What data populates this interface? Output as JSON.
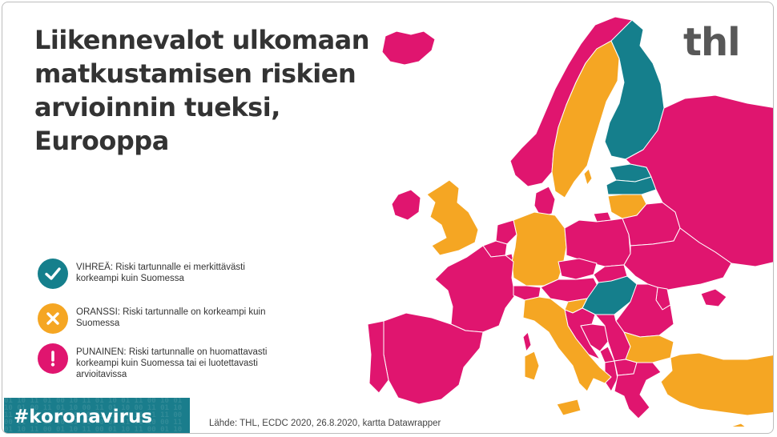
{
  "title": "Liikennevalot ulkomaan matkustamisen riskien arvioinnin tueksi, Eurooppa",
  "logo": "thl",
  "colors": {
    "green": "#157f8c",
    "orange": "#f5a623",
    "red": "#e0156f",
    "neutral": "#cfcfcf",
    "hashtag_bg": "#1a7d8c"
  },
  "legend": [
    {
      "key": "green",
      "icon": "check-icon",
      "text": "VIHREÄ: Riski tartunnalle ei merkittävästi korkeampi kuin Suomessa"
    },
    {
      "key": "orange",
      "icon": "cross-icon",
      "text": "ORANSSI: Riski tartunnalle on korkeampi kuin Suomessa"
    },
    {
      "key": "red",
      "icon": "exclamation-icon",
      "text": "PUNAINEN: Riski tartunnalle on huomattavasti korkeampi kuin Suomessa tai ei luotettavasti arvioitavissa"
    }
  ],
  "hashtag": "#koronavirus",
  "source": "Lähde: THL, ECDC 2020, 26.8.2020, kartta Datawrapper",
  "map_regions": [
    {
      "id": "iceland",
      "status": "red"
    },
    {
      "id": "norway",
      "status": "red"
    },
    {
      "id": "sweden",
      "status": "orange"
    },
    {
      "id": "finland",
      "status": "green"
    },
    {
      "id": "estonia",
      "status": "green"
    },
    {
      "id": "latvia",
      "status": "green"
    },
    {
      "id": "lithuania",
      "status": "orange"
    },
    {
      "id": "denmark",
      "status": "red"
    },
    {
      "id": "ireland",
      "status": "red"
    },
    {
      "id": "united-kingdom",
      "status": "orange"
    },
    {
      "id": "netherlands",
      "status": "red"
    },
    {
      "id": "belgium",
      "status": "red"
    },
    {
      "id": "luxembourg",
      "status": "red"
    },
    {
      "id": "germany",
      "status": "orange"
    },
    {
      "id": "poland",
      "status": "red"
    },
    {
      "id": "belarus",
      "status": "red"
    },
    {
      "id": "ukraine",
      "status": "red"
    },
    {
      "id": "russia",
      "status": "red"
    },
    {
      "id": "france",
      "status": "red"
    },
    {
      "id": "spain",
      "status": "red"
    },
    {
      "id": "portugal",
      "status": "red"
    },
    {
      "id": "switzerland",
      "status": "red"
    },
    {
      "id": "czechia",
      "status": "red"
    },
    {
      "id": "austria",
      "status": "red"
    },
    {
      "id": "slovakia",
      "status": "red"
    },
    {
      "id": "hungary",
      "status": "green"
    },
    {
      "id": "slovenia",
      "status": "orange"
    },
    {
      "id": "italy",
      "status": "orange"
    },
    {
      "id": "croatia",
      "status": "red"
    },
    {
      "id": "bosnia",
      "status": "red"
    },
    {
      "id": "serbia",
      "status": "red"
    },
    {
      "id": "romania",
      "status": "red"
    },
    {
      "id": "moldova",
      "status": "red"
    },
    {
      "id": "bulgaria",
      "status": "orange"
    },
    {
      "id": "montenegro",
      "status": "red"
    },
    {
      "id": "albania",
      "status": "red"
    },
    {
      "id": "north-macedonia",
      "status": "red"
    },
    {
      "id": "greece",
      "status": "red"
    },
    {
      "id": "turkey",
      "status": "orange"
    },
    {
      "id": "sardinia",
      "status": "orange"
    },
    {
      "id": "corsica",
      "status": "red"
    },
    {
      "id": "sicily",
      "status": "orange"
    },
    {
      "id": "cyprus",
      "status": "orange"
    },
    {
      "id": "crimea",
      "status": "red"
    },
    {
      "id": "kaliningrad",
      "status": "red"
    },
    {
      "id": "gotland",
      "status": "orange"
    }
  ]
}
